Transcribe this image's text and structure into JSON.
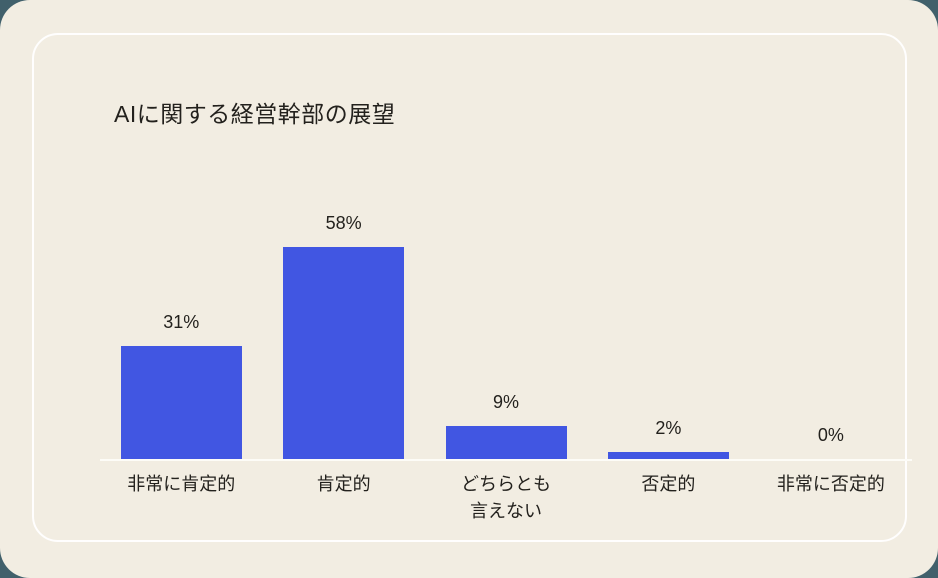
{
  "page": {
    "background": "#F2EDE2",
    "outer_background": "#41606B",
    "card_border_color": "#FFFFFF",
    "text_color": "#23211D"
  },
  "chart_data": {
    "type": "bar",
    "title": "AIに関する経営幹部の展望",
    "categories": [
      "非常に肯定的",
      "肯定的",
      "どちらとも\n言えない",
      "否定的",
      "非常に否定的"
    ],
    "values": [
      31,
      58,
      9,
      2,
      0
    ],
    "value_labels": [
      "31%",
      "58%",
      "9%",
      "2%",
      "0%"
    ],
    "unit": "%",
    "bar_color": "#4156E2",
    "axis_line_color": "#FDFCF7",
    "ylim": [
      0,
      60
    ],
    "grid": false,
    "legend": false,
    "value_labels_position": "above-bars",
    "baseline": "x-axis only"
  }
}
